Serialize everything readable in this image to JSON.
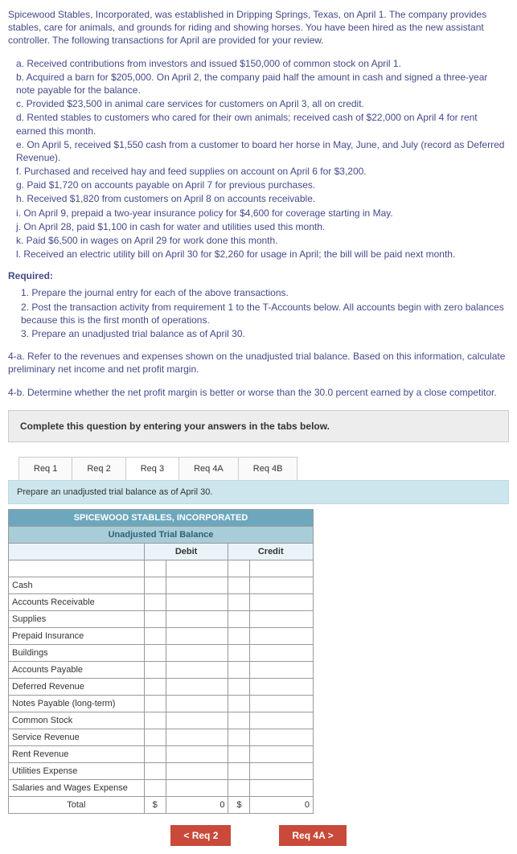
{
  "intro": "Spicewood Stables, Incorporated, was established in Dripping Springs, Texas, on April 1. The company provides stables, care for animals, and grounds for riding and showing horses. You have been hired as the new assistant controller. The following transactions for April are provided for your review.",
  "transactions": [
    "a. Received contributions from investors and issued $150,000 of common stock on April 1.",
    "b. Acquired a barn for $205,000. On April 2, the company paid half the amount in cash and signed a three-year note payable for the balance.",
    "c. Provided $23,500 in animal care services for customers on April 3, all on credit.",
    "d. Rented stables to customers who cared for their own animals; received cash of $22,000 on April 4 for rent earned this month.",
    "e. On April 5, received $1,550 cash from a customer to board her horse in May, June, and July (record as Deferred Revenue).",
    "f. Purchased and received hay and feed supplies on account on April 6 for $3,200.",
    "g. Paid $1,720 on accounts payable on April 7 for previous purchases.",
    "h. Received $1,820 from customers on April 8 on accounts receivable.",
    "i. On April 9, prepaid a two-year insurance policy for $4,600 for coverage starting in May.",
    "j. On April 28, paid $1,100 in cash for water and utilities used this month.",
    "k. Paid $6,500 in wages on April 29 for work done this month.",
    "l. Received an electric utility bill on April 30 for $2,260 for usage in April; the bill will be paid next month."
  ],
  "required_heading": "Required:",
  "required": [
    "1. Prepare the journal entry for each of the above transactions.",
    "2. Post the transaction activity from requirement 1 to the T-Accounts below. All accounts begin with zero balances because this is the first month of operations.",
    "3. Prepare an unadjusted trial balance as of April 30."
  ],
  "req4a": "4-a. Refer to the revenues and expenses shown on the unadjusted trial balance. Based on this information, calculate preliminary net income and net profit margin.",
  "req4b": "4-b. Determine whether the net profit margin is better or worse than the 30.0 percent earned by a close competitor.",
  "answer_box": "Complete this question by entering your answers in the tabs below.",
  "tabs": {
    "t1": "Req 1",
    "t2": "Req 2",
    "t3": "Req 3",
    "t4": "Req 4A",
    "t5": "Req 4B"
  },
  "tab_content_header": "Prepare an unadjusted trial balance as of April 30.",
  "tb_title": "SPICEWOOD STABLES, INCORPORATED",
  "tb_subtitle": "Unadjusted Trial Balance",
  "col_debit": "Debit",
  "col_credit": "Credit",
  "accounts": [
    "Cash",
    "Accounts Receivable",
    "Supplies",
    "Prepaid Insurance",
    "Buildings",
    "Accounts Payable",
    "Deferred Revenue",
    "Notes Payable (long-term)",
    "Common Stock",
    "Service Revenue",
    "Rent Revenue",
    "Utilities Expense",
    "Salaries and Wages Expense"
  ],
  "total_label": "Total",
  "cur": "$",
  "zero": "0",
  "nav_prev": "<  Req 2",
  "nav_next": "Req 4A  >"
}
